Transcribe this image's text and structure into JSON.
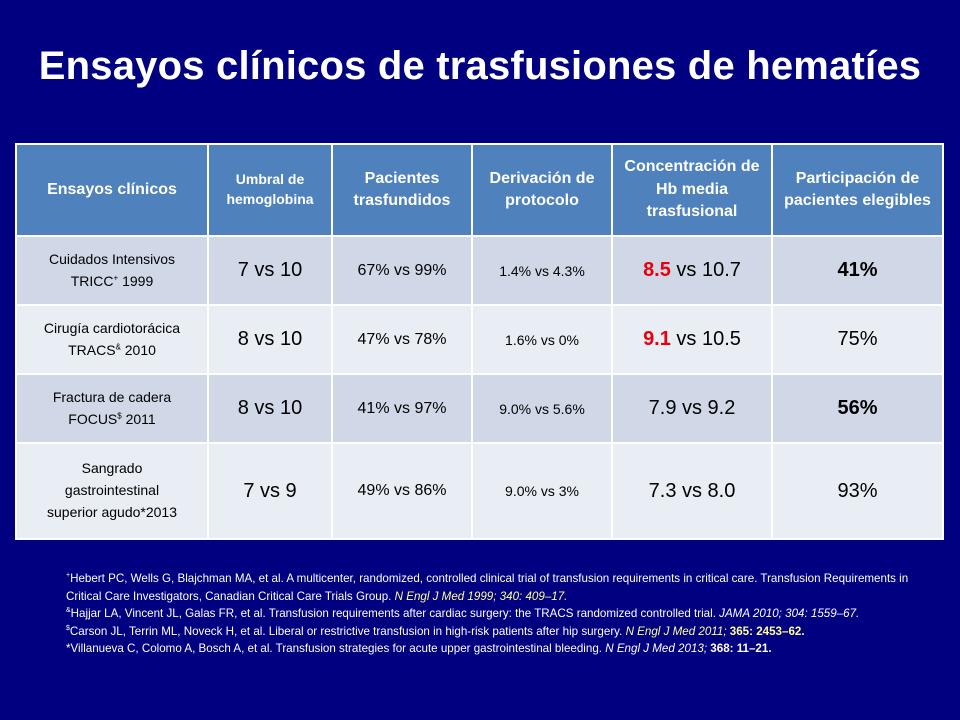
{
  "title": "Ensayos clínicos de trasfusiones de hematíes",
  "colors": {
    "background": "#000080",
    "header_fill": "#4f81bd",
    "row_odd": "#d0d8e8",
    "row_even": "#e9edf4",
    "highlight_red": "#e8000b",
    "journal_yellow": "#ffff99"
  },
  "table": {
    "headers": {
      "trials": "Ensayos clínicos",
      "threshold": "Umbral de hemoglobina",
      "transfused": "Pacientes trasfundidos",
      "deviation": "Derivación de protocolo",
      "hb": "Concentración de Hb media trasfusional",
      "participation": "Participación de pacientes elegibles"
    },
    "rows": [
      {
        "trial_line1": "Cuidados Intensivos",
        "trial_name": "TRICC",
        "trial_mark": "+",
        "trial_year": " 1999",
        "threshold": "7 vs 10",
        "transfused": "67% vs 99%",
        "deviation": "1.4% vs 4.3%",
        "hb_restrictive": "8.5",
        "hb_rest": " vs 10.7",
        "participation": "41%"
      },
      {
        "trial_line1": "Cirugía cardiotorácica",
        "trial_name": "TRACS",
        "trial_mark": "&",
        "trial_year": " 2010",
        "threshold": "8 vs 10",
        "transfused": "47% vs 78%",
        "deviation": "1.6% vs 0%",
        "hb_restrictive": "9.1",
        "hb_rest": " vs 10.5",
        "participation": "75%"
      },
      {
        "trial_line1": "Fractura de cadera",
        "trial_name": "FOCUS",
        "trial_mark": "$",
        "trial_year": " 2011",
        "threshold": "8 vs 10",
        "transfused": "41% vs 97%",
        "deviation": "9.0% vs 5.6%",
        "hb": "7.9 vs 9.2",
        "participation": "56%"
      },
      {
        "trial_line1": "Sangrado",
        "trial_line2": "gastrointestinal",
        "trial_line3": "superior agudo*2013",
        "threshold": "7 vs 9",
        "transfused": "49% vs 86%",
        "deviation": "9.0% vs 3%",
        "hb": "7.3 vs 8.0",
        "participation": "93%"
      }
    ]
  },
  "references": [
    {
      "mark": "+",
      "authors": "Hebert PC, Wells G, Blajchman MA, et al. A multicenter, randomized, controlled clinical trial of transfusion requirements in critical care. Transfusion Requirements in Critical Care Investigators, Canadian Critical Care Trials Group.",
      "journal": "N Engl J Med 1999;",
      "citation": "340: 409–17."
    },
    {
      "mark": "&",
      "authors": "Hajjar LA, Vincent JL, Galas FR, et al. Transfusion requirements after cardiac surgery: the TRACS randomized controlled trial.",
      "journal": "JAMA 2010;",
      "citation": "304: 1559–67."
    },
    {
      "mark": "$",
      "authors": "Carson JL, Terrin ML, Noveck H, et al. Liberal or restrictive transfusion in high-risk patients after hip surgery.",
      "journal": "N Engl J Med 2011;",
      "citation": "365: 2453–62."
    },
    {
      "mark": "*",
      "authors": "Villanueva C, Colomo A, Bosch A, et al. Transfusion strategies for acute upper gastrointestinal bleeding.",
      "journal": "N Engl J Med 2013;",
      "citation": "368: 11–21."
    }
  ]
}
